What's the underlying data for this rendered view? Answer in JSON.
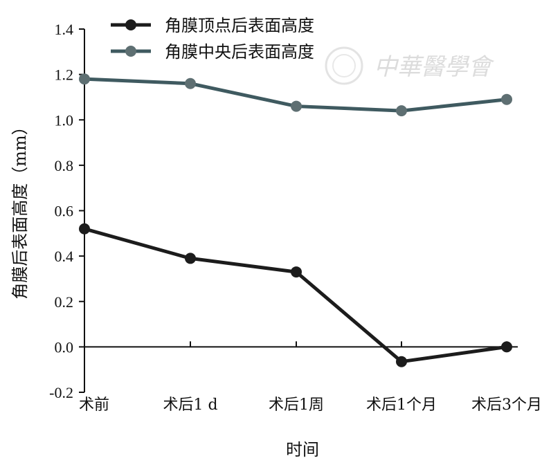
{
  "chart_data": {
    "type": "line",
    "title": "",
    "xlabel": "时间",
    "ylabel": "角膜后表面高度（mm）",
    "categories": [
      "术前",
      "术后1 d",
      "术后1周",
      "术后1个月",
      "术后3个月"
    ],
    "ylim": [
      -0.2,
      1.4
    ],
    "yticks": [
      -0.2,
      0.0,
      0.2,
      0.4,
      0.6,
      0.8,
      1.0,
      1.2,
      1.4
    ],
    "ytick_labels": [
      "-0.2",
      "0.0",
      "0.2",
      "0.4",
      "0.6",
      "0.8",
      "1.0",
      "1.2",
      "1.4"
    ],
    "grid": false,
    "legend_position": "top",
    "series": [
      {
        "name": "角膜顶点后表面高度",
        "color": "#1c1c1c",
        "marker_color": "#1c1c1c",
        "values": [
          0.52,
          0.39,
          0.33,
          -0.065,
          0.0
        ]
      },
      {
        "name": "角膜中央后表面高度",
        "color": "#3f5a60",
        "marker_color": "#5e6f72",
        "values": [
          1.18,
          1.16,
          1.06,
          1.04,
          1.09
        ]
      }
    ]
  },
  "watermark": {
    "text": "中華醫學會"
  }
}
